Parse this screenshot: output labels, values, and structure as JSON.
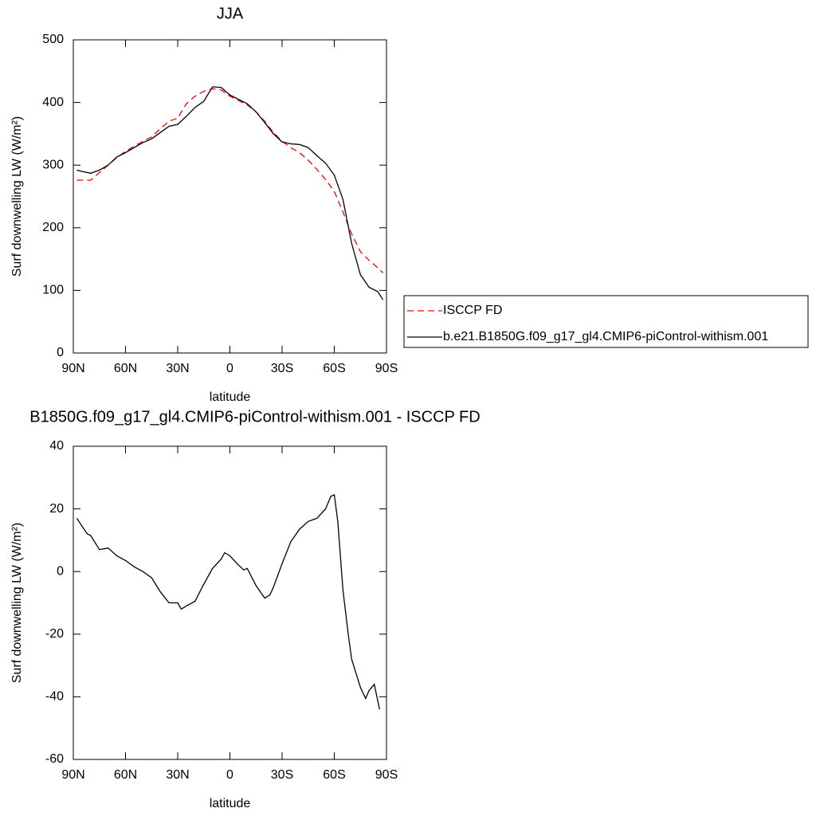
{
  "chart_data": [
    {
      "type": "line",
      "title": "JJA",
      "xlabel": "latitude",
      "ylabel": "Surf downwelling LW (W/m²)",
      "x": [
        88,
        85,
        80,
        75,
        70,
        65,
        60,
        55,
        50,
        45,
        40,
        35,
        30,
        25,
        20,
        15,
        10,
        5,
        0,
        -5,
        -10,
        -15,
        -20,
        -25,
        -30,
        -35,
        -40,
        -45,
        -50,
        -55,
        -60,
        -65,
        -70,
        -75,
        -80,
        -85,
        -88
      ],
      "xlim": [
        90,
        -90
      ],
      "xticks": [
        {
          "value": 90,
          "label": "90N"
        },
        {
          "value": 60,
          "label": "60N"
        },
        {
          "value": 30,
          "label": "30N"
        },
        0,
        {
          "value": -30,
          "label": "30S"
        },
        {
          "value": -60,
          "label": "60S"
        },
        {
          "value": -90,
          "label": "90S"
        }
      ],
      "ylim": [
        0,
        500
      ],
      "yticks": [
        0,
        100,
        200,
        300,
        400,
        500
      ],
      "legend": "outside right",
      "series": [
        {
          "name": "ISCCP FD",
          "color": "#ff0000",
          "style": "dashed",
          "values": [
            276,
            276,
            276,
            288,
            300,
            312,
            322,
            330,
            338,
            345,
            358,
            370,
            375,
            398,
            410,
            418,
            422,
            420,
            410,
            403,
            396,
            385,
            370,
            352,
            338,
            328,
            320,
            308,
            293,
            277,
            258,
            225,
            190,
            162,
            148,
            136,
            128
          ]
        },
        {
          "name": "b.e21.B1850G.f09_g17_gl4.CMIP6-piControl-withism.001",
          "color": "#000000",
          "style": "solid",
          "values": [
            292,
            290,
            287,
            292,
            300,
            313,
            320,
            328,
            336,
            342,
            352,
            362,
            365,
            378,
            392,
            402,
            425,
            424,
            412,
            405,
            398,
            385,
            368,
            350,
            337,
            334,
            333,
            328,
            315,
            303,
            284,
            245,
            175,
            125,
            105,
            98,
            85
          ]
        }
      ]
    },
    {
      "type": "line",
      "title": "B1850G.f09_g17_gl4.CMIP6-piControl-withism.001 - ISCCP FD",
      "xlabel": "latitude",
      "ylabel": "Surf downwelling LW (W/m²)",
      "x": [
        88,
        85,
        82,
        80,
        75,
        70,
        65,
        60,
        55,
        50,
        45,
        40,
        35,
        30,
        28,
        25,
        20,
        15,
        10,
        5,
        3,
        0,
        -5,
        -8,
        -10,
        -15,
        -20,
        -23,
        -25,
        -30,
        -35,
        -40,
        -45,
        -50,
        -55,
        -58,
        -60,
        -62,
        -65,
        -68,
        -70,
        -75,
        -78,
        -80,
        -83,
        -86
      ],
      "xlim": [
        90,
        -90
      ],
      "xticks": [
        {
          "value": 90,
          "label": "90N"
        },
        {
          "value": 60,
          "label": "60N"
        },
        {
          "value": 30,
          "label": "30N"
        },
        0,
        {
          "value": -30,
          "label": "30S"
        },
        {
          "value": -60,
          "label": "60S"
        },
        {
          "value": -90,
          "label": "90S"
        }
      ],
      "ylim": [
        -60,
        40
      ],
      "yticks": [
        -60,
        -40,
        -20,
        0,
        20,
        40
      ],
      "series": [
        {
          "color": "#000000",
          "style": "solid",
          "values": [
            17,
            14.5,
            12,
            11.5,
            7,
            7.5,
            5,
            3.5,
            1.5,
            0,
            -2,
            -6.5,
            -10,
            -10,
            -12,
            -11,
            -9.5,
            -4,
            1,
            4,
            6,
            5,
            2,
            0.5,
            1,
            -4.5,
            -8.5,
            -7.5,
            -5,
            2.5,
            9.5,
            13.5,
            16,
            17,
            20,
            24,
            24.5,
            16,
            -6,
            -20,
            -28,
            -37,
            -40.5,
            -38,
            -36,
            -44
          ]
        }
      ]
    }
  ]
}
